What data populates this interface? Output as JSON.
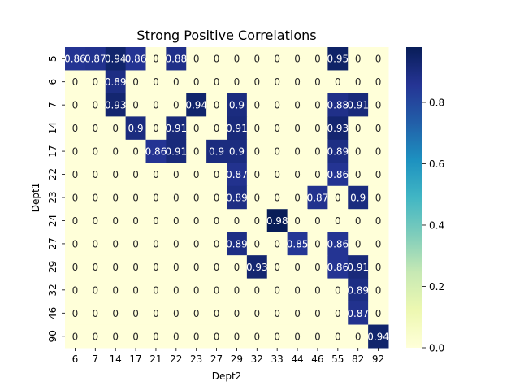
{
  "chart_data": {
    "type": "heatmap",
    "title": "Strong Positive Correlations",
    "xlabel": "Dept2",
    "ylabel": "Dept1",
    "x_categories": [
      "6",
      "7",
      "14",
      "17",
      "21",
      "22",
      "23",
      "27",
      "29",
      "32",
      "33",
      "44",
      "46",
      "55",
      "82",
      "92"
    ],
    "y_categories": [
      "5",
      "6",
      "7",
      "14",
      "17",
      "22",
      "23",
      "24",
      "27",
      "29",
      "32",
      "46",
      "90"
    ],
    "values": [
      [
        0.86,
        0.87,
        0.94,
        0.86,
        0,
        0.88,
        0,
        0,
        0,
        0,
        0,
        0,
        0,
        0.95,
        0,
        0
      ],
      [
        0,
        0,
        0.89,
        0,
        0,
        0,
        0,
        0,
        0,
        0,
        0,
        0,
        0,
        0,
        0,
        0
      ],
      [
        0,
        0,
        0.93,
        0,
        0,
        0,
        0.94,
        0,
        0.9,
        0,
        0,
        0,
        0,
        0.88,
        0.91,
        0
      ],
      [
        0,
        0,
        0,
        0.9,
        0,
        0.91,
        0,
        0,
        0.91,
        0,
        0,
        0,
        0,
        0.93,
        0,
        0
      ],
      [
        0,
        0,
        0,
        0,
        0.86,
        0.91,
        0,
        0.9,
        0.9,
        0,
        0,
        0,
        0,
        0.89,
        0,
        0
      ],
      [
        0,
        0,
        0,
        0,
        0,
        0,
        0,
        0,
        0.87,
        0,
        0,
        0,
        0,
        0.86,
        0,
        0
      ],
      [
        0,
        0,
        0,
        0,
        0,
        0,
        0,
        0,
        0.89,
        0,
        0,
        0,
        0.87,
        0,
        0.9,
        0
      ],
      [
        0,
        0,
        0,
        0,
        0,
        0,
        0,
        0,
        0,
        0,
        0.98,
        0,
        0,
        0,
        0,
        0
      ],
      [
        0,
        0,
        0,
        0,
        0,
        0,
        0,
        0,
        0.89,
        0,
        0,
        0.85,
        0,
        0.86,
        0,
        0
      ],
      [
        0,
        0,
        0,
        0,
        0,
        0,
        0,
        0,
        0,
        0.93,
        0,
        0,
        0,
        0.86,
        0.91,
        0
      ],
      [
        0,
        0,
        0,
        0,
        0,
        0,
        0,
        0,
        0,
        0,
        0,
        0,
        0,
        0,
        0.89,
        0
      ],
      [
        0,
        0,
        0,
        0,
        0,
        0,
        0,
        0,
        0,
        0,
        0,
        0,
        0,
        0,
        0.87,
        0
      ],
      [
        0,
        0,
        0,
        0,
        0,
        0,
        0,
        0,
        0,
        0,
        0,
        0,
        0,
        0,
        0,
        0.94
      ]
    ],
    "value_labels": [
      [
        "0.86",
        "0.87",
        "0.94",
        "0.86",
        "0",
        "0.88",
        "0",
        "0",
        "0",
        "0",
        "0",
        "0",
        "0",
        "0.95",
        "0",
        "0"
      ],
      [
        "0",
        "0",
        "0.89",
        "0",
        "0",
        "0",
        "0",
        "0",
        "0",
        "0",
        "0",
        "0",
        "0",
        "0",
        "0",
        "0"
      ],
      [
        "0",
        "0",
        "0.93",
        "0",
        "0",
        "0",
        "0.94",
        "0",
        "0.9",
        "0",
        "0",
        "0",
        "0",
        "0.88",
        "0.91",
        "0"
      ],
      [
        "0",
        "0",
        "0",
        "0.9",
        "0",
        "0.91",
        "0",
        "0",
        "0.91",
        "0",
        "0",
        "0",
        "0",
        "0.93",
        "0",
        "0"
      ],
      [
        "0",
        "0",
        "0",
        "0",
        "0.86",
        "0.91",
        "0",
        "0.9",
        "0.9",
        "0",
        "0",
        "0",
        "0",
        "0.89",
        "0",
        "0"
      ],
      [
        "0",
        "0",
        "0",
        "0",
        "0",
        "0",
        "0",
        "0",
        "0.87",
        "0",
        "0",
        "0",
        "0",
        "0.86",
        "0",
        "0"
      ],
      [
        "0",
        "0",
        "0",
        "0",
        "0",
        "0",
        "0",
        "0",
        "0.89",
        "0",
        "0",
        "0",
        "0.87",
        "0",
        "0.9",
        "0"
      ],
      [
        "0",
        "0",
        "0",
        "0",
        "0",
        "0",
        "0",
        "0",
        "0",
        "0",
        "0.98",
        "0",
        "0",
        "0",
        "0",
        "0"
      ],
      [
        "0",
        "0",
        "0",
        "0",
        "0",
        "0",
        "0",
        "0",
        "0.89",
        "0",
        "0",
        "0.85",
        "0",
        "0.86",
        "0",
        "0"
      ],
      [
        "0",
        "0",
        "0",
        "0",
        "0",
        "0",
        "0",
        "0",
        "0",
        "0.93",
        "0",
        "0",
        "0",
        "0.86",
        "0.91",
        "0"
      ],
      [
        "0",
        "0",
        "0",
        "0",
        "0",
        "0",
        "0",
        "0",
        "0",
        "0",
        "0",
        "0",
        "0",
        "0",
        "0.89",
        "0"
      ],
      [
        "0",
        "0",
        "0",
        "0",
        "0",
        "0",
        "0",
        "0",
        "0",
        "0",
        "0",
        "0",
        "0",
        "0",
        "0.87",
        "0"
      ],
      [
        "0",
        "0",
        "0",
        "0",
        "0",
        "0",
        "0",
        "0",
        "0",
        "0",
        "0",
        "0",
        "0",
        "0",
        "0",
        "0.94"
      ]
    ],
    "colormap": "YlGnBu",
    "colormap_stops": [
      "#ffffd9",
      "#edf8b1",
      "#c7e9b4",
      "#7fcdbb",
      "#41b6c4",
      "#1d91c0",
      "#225ea8",
      "#253494",
      "#081d58"
    ],
    "vmin": 0,
    "vmax": 0.98,
    "colorbar": {
      "ticks": [
        0.0,
        0.2,
        0.4,
        0.6,
        0.8
      ],
      "tick_labels": [
        "0.0",
        "0.2",
        "0.4",
        "0.6",
        "0.8"
      ]
    },
    "grid": false,
    "legend": "colorbar-right"
  }
}
